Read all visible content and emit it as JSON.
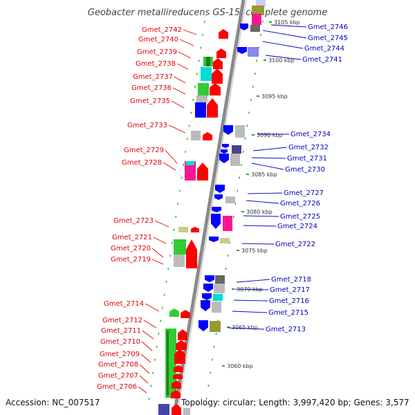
{
  "title": "Geobacter metallireducens GS-15, complete genome",
  "footer": {
    "accession": "Accession: NC_007517",
    "topology": "Topology: circular; Length: 3,997,420 bp; Genes: 3,577"
  },
  "colors": {
    "left_labels": "#e00000",
    "right_labels": "#0000c0",
    "backbone": "#888888",
    "track_dash": "#22aa22"
  },
  "ticks": [
    "3105 kbp",
    "3100 kbp",
    "3095 kbp",
    "3090 kbp",
    "3085 kbp",
    "3080 kbp",
    "3075 kbp",
    "3070 kbp",
    "3065 kbp",
    "3060 kbp"
  ],
  "left_genes": [
    "Gmet_2742",
    "Gmet_2740",
    "Gmet_2739",
    "Gmet_2738",
    "Gmet_2737",
    "Gmet_2736",
    "Gmet_2735",
    "Gmet_2733",
    "Gmet_2729",
    "Gmet_2728",
    "Gmet_2723",
    "Gmet_2721",
    "Gmet_2720",
    "Gmet_2719",
    "Gmet_2714",
    "Gmet_2712",
    "Gmet_2711",
    "Gmet_2710",
    "Gmet_2709",
    "Gmet_2708",
    "Gmet_2707",
    "Gmet_2706"
  ],
  "right_genes": [
    "Gmet_2746",
    "Gmet_2745",
    "Gmet_2744",
    "Gmet_2741",
    "Gmet_2734",
    "Gmet_2732",
    "Gmet_2731",
    "Gmet_2730",
    "Gmet_2727",
    "Gmet_2726",
    "Gmet_2725",
    "Gmet_2724",
    "Gmet_2722",
    "Gmet_2718",
    "Gmet_2717",
    "Gmet_2716",
    "Gmet_2715",
    "Gmet_2713"
  ]
}
